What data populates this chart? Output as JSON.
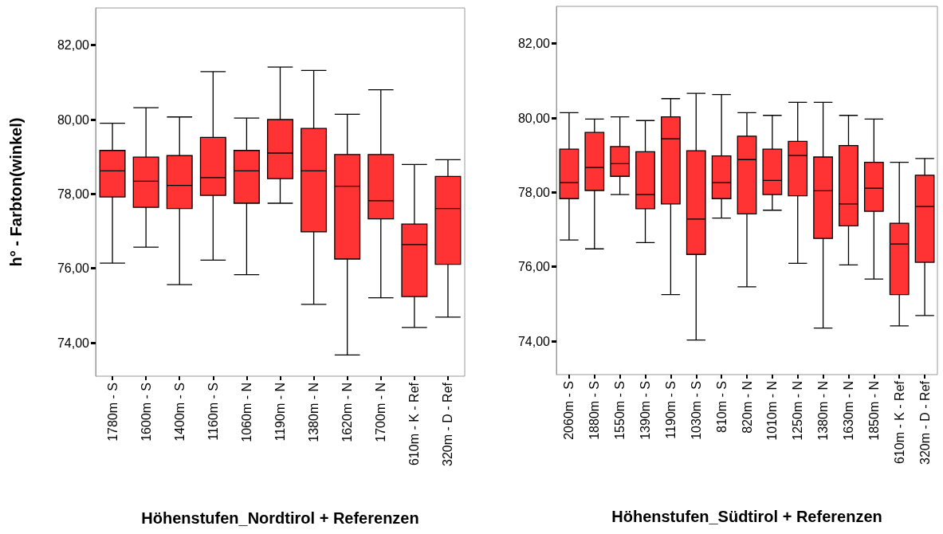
{
  "chart_data": [
    {
      "type": "box",
      "ylabel": "h° - Farbton(winkel)",
      "xlabel": "Höhenstufen_Nordtirol + Referenzen",
      "categories": [
        "1780m - S",
        "1600m - S",
        "1400m - S",
        "1160m - S",
        "1060m - N",
        "1190m - N",
        "1380m - N",
        "1620m - N",
        "1700m - N",
        "610m - K - Ref",
        "320m - D - Ref"
      ],
      "series": [
        {
          "color": "#ff3333",
          "boxes": [
            {
              "low": 76.14,
              "q1": 77.92,
              "median": 78.62,
              "q3": 79.17,
              "high": 79.9
            },
            {
              "low": 76.57,
              "q1": 77.64,
              "median": 78.34,
              "q3": 78.99,
              "high": 80.32
            },
            {
              "low": 75.56,
              "q1": 77.61,
              "median": 78.23,
              "q3": 79.03,
              "high": 80.07
            },
            {
              "low": 76.22,
              "q1": 77.96,
              "median": 78.44,
              "q3": 79.52,
              "high": 81.29
            },
            {
              "low": 75.83,
              "q1": 77.75,
              "median": 78.62,
              "q3": 79.17,
              "high": 80.04
            },
            {
              "low": 77.75,
              "q1": 78.41,
              "median": 79.1,
              "q3": 80.0,
              "high": 81.41
            },
            {
              "low": 75.03,
              "q1": 76.98,
              "median": 78.62,
              "q3": 79.76,
              "high": 81.32
            },
            {
              "low": 73.67,
              "q1": 76.25,
              "median": 78.21,
              "q3": 79.06,
              "high": 80.14
            },
            {
              "low": 75.21,
              "q1": 77.33,
              "median": 77.82,
              "q3": 79.06,
              "high": 80.8
            },
            {
              "low": 74.41,
              "q1": 75.24,
              "median": 76.64,
              "q3": 77.19,
              "high": 78.79
            },
            {
              "low": 74.69,
              "q1": 76.11,
              "median": 77.61,
              "q3": 78.47,
              "high": 78.92
            }
          ]
        }
      ],
      "ylim": [
        73.1,
        83.0
      ],
      "yticks": [
        {
          "value": 74,
          "label": "74,00"
        },
        {
          "value": 76,
          "label": "76,00"
        },
        {
          "value": 78,
          "label": "78,00"
        },
        {
          "value": 80,
          "label": "80,00"
        },
        {
          "value": 82,
          "label": "82,00"
        }
      ]
    },
    {
      "type": "box",
      "xlabel": "Höhenstufen_Südtirol + Referenzen",
      "categories": [
        "2060m - S",
        "1880m - S",
        "1550m - S",
        "1390m - S",
        "1190m - S",
        "1030m - S",
        "810m - S",
        "820m - N",
        "1010m - N",
        "1250m - N",
        "1380m - N",
        "1630m - N",
        "1850m - N",
        "610m - K - Ref",
        "320m - D - Ref"
      ],
      "series": [
        {
          "color": "#ff3333",
          "boxes": [
            {
              "low": 76.72,
              "q1": 77.83,
              "median": 78.26,
              "q3": 79.16,
              "high": 80.14
            },
            {
              "low": 76.48,
              "q1": 78.05,
              "median": 78.67,
              "q3": 79.61,
              "high": 79.97
            },
            {
              "low": 77.94,
              "q1": 78.43,
              "median": 78.77,
              "q3": 79.23,
              "high": 80.03
            },
            {
              "low": 76.65,
              "q1": 77.56,
              "median": 77.94,
              "q3": 79.09,
              "high": 79.93
            },
            {
              "low": 75.25,
              "q1": 77.69,
              "median": 79.44,
              "q3": 80.03,
              "high": 80.52
            },
            {
              "low": 74.03,
              "q1": 76.33,
              "median": 77.28,
              "q3": 79.12,
              "high": 80.66
            },
            {
              "low": 77.31,
              "q1": 77.83,
              "median": 78.26,
              "q3": 78.98,
              "high": 80.63
            },
            {
              "low": 75.46,
              "q1": 77.42,
              "median": 78.88,
              "q3": 79.51,
              "high": 80.14
            },
            {
              "low": 77.52,
              "q1": 77.94,
              "median": 78.32,
              "q3": 79.16,
              "high": 80.07
            },
            {
              "low": 76.09,
              "q1": 77.91,
              "median": 78.99,
              "q3": 79.37,
              "high": 80.42
            },
            {
              "low": 74.35,
              "q1": 76.76,
              "median": 78.04,
              "q3": 78.95,
              "high": 80.42
            },
            {
              "low": 76.05,
              "q1": 77.1,
              "median": 77.69,
              "q3": 79.26,
              "high": 80.07
            },
            {
              "low": 75.67,
              "q1": 77.49,
              "median": 78.11,
              "q3": 78.81,
              "high": 79.97
            },
            {
              "low": 74.41,
              "q1": 75.25,
              "median": 76.61,
              "q3": 77.17,
              "high": 78.81
            },
            {
              "low": 74.69,
              "q1": 76.12,
              "median": 77.62,
              "q3": 78.46,
              "high": 78.91
            }
          ]
        }
      ],
      "ylim": [
        73.1,
        83.0
      ],
      "yticks": [
        {
          "value": 74,
          "label": "74,00"
        },
        {
          "value": 76,
          "label": "76,00"
        },
        {
          "value": 78,
          "label": "78,00"
        },
        {
          "value": 80,
          "label": "80,00"
        },
        {
          "value": 82,
          "label": "82,00"
        }
      ]
    }
  ]
}
